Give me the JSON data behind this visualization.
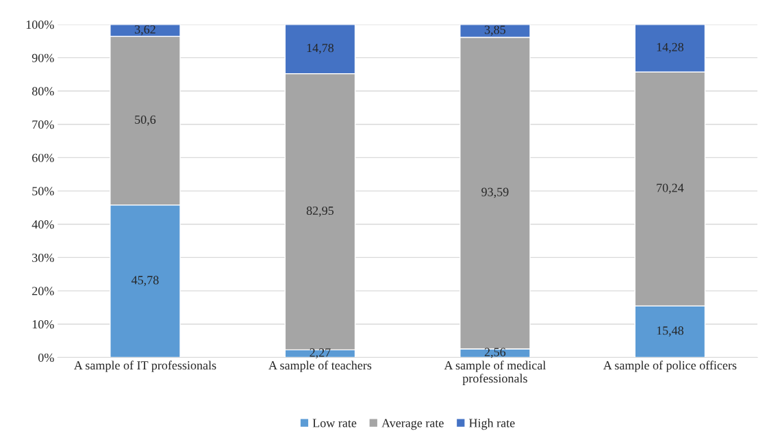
{
  "chart_data": {
    "type": "bar",
    "stacked": true,
    "categories": [
      "A sample of IT professionals",
      "A sample of teachers",
      "A sample of medical\nprofessionals",
      "A sample of police officers"
    ],
    "series": [
      {
        "name": "Low rate",
        "color": "#5b9bd5",
        "values": [
          45.78,
          2.27,
          2.56,
          15.48
        ],
        "value_labels": [
          "45,78",
          "2,27",
          "2,56",
          "15,48"
        ]
      },
      {
        "name": "Average rate",
        "color": "#a5a5a5",
        "values": [
          50.6,
          82.95,
          93.59,
          70.24
        ],
        "value_labels": [
          "50,6",
          "82,95",
          "93,59",
          "70,24"
        ]
      },
      {
        "name": "High rate",
        "color": "#4472c4",
        "values": [
          3.62,
          14.78,
          3.85,
          14.28
        ],
        "value_labels": [
          "3,62",
          "14,78",
          "3,85",
          "14,28"
        ]
      }
    ],
    "ylim": [
      0,
      100
    ],
    "yticks": [
      {
        "value": 0,
        "label": "0%"
      },
      {
        "value": 10,
        "label": "10%"
      },
      {
        "value": 20,
        "label": "20%"
      },
      {
        "value": 30,
        "label": "30%"
      },
      {
        "value": 40,
        "label": "40%"
      },
      {
        "value": 50,
        "label": "50%"
      },
      {
        "value": 60,
        "label": "60%"
      },
      {
        "value": 70,
        "label": "70%"
      },
      {
        "value": 80,
        "label": "80%"
      },
      {
        "value": 90,
        "label": "90%"
      },
      {
        "value": 100,
        "label": "100%"
      }
    ],
    "grid": "y",
    "legend": "bottom"
  }
}
